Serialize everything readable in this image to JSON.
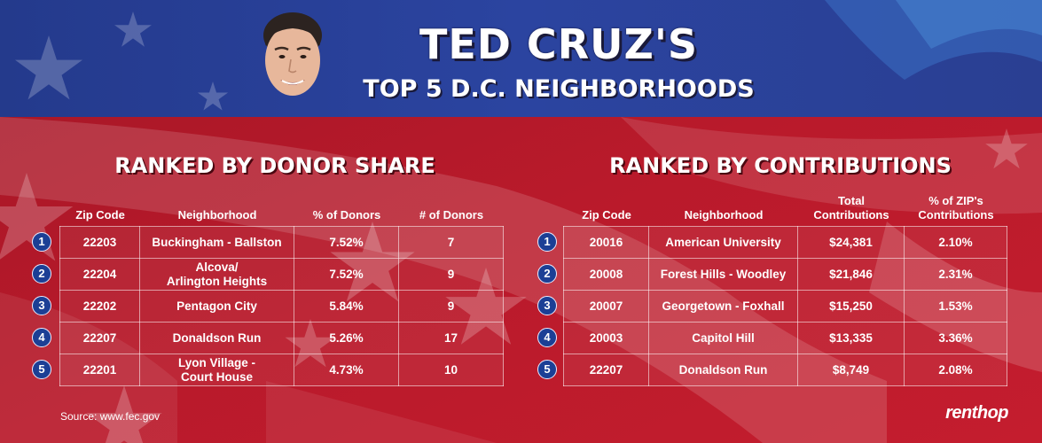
{
  "header": {
    "title": "TED CRUZ'S",
    "subtitle": "TOP 5 D.C. NEIGHBORHOODS"
  },
  "left_table": {
    "title": "RANKED BY DONOR SHARE",
    "columns": [
      "Zip Code",
      "Neighborhood",
      "% of Donors",
      "# of Donors"
    ],
    "rows": [
      {
        "rank": "1",
        "zip": "22203",
        "neighborhood": [
          "Buckingham - Ballston"
        ],
        "percent": "7.52%",
        "count": "7"
      },
      {
        "rank": "2",
        "zip": "22204",
        "neighborhood": [
          "Alcova/",
          "Arlington Heights"
        ],
        "percent": "7.52%",
        "count": "9"
      },
      {
        "rank": "3",
        "zip": "22202",
        "neighborhood": [
          "Pentagon City"
        ],
        "percent": "5.84%",
        "count": "9"
      },
      {
        "rank": "4",
        "zip": "22207",
        "neighborhood": [
          "Donaldson Run"
        ],
        "percent": "5.26%",
        "count": "17"
      },
      {
        "rank": "5",
        "zip": "22201",
        "neighborhood": [
          "Lyon Village -",
          "Court House"
        ],
        "percent": "4.73%",
        "count": "10"
      }
    ]
  },
  "right_table": {
    "title": "RANKED BY CONTRIBUTIONS",
    "columns": [
      [
        "Zip Code"
      ],
      [
        "Neighborhood"
      ],
      [
        "Total",
        "Contributions"
      ],
      [
        "% of ZIP's",
        "Contributions"
      ]
    ],
    "rows": [
      {
        "rank": "1",
        "zip": "20016",
        "neighborhood": "American University",
        "total": "$24,381",
        "share": "2.10%"
      },
      {
        "rank": "2",
        "zip": "20008",
        "neighborhood": "Forest Hills - Woodley",
        "total": "$21,846",
        "share": "2.31%"
      },
      {
        "rank": "3",
        "zip": "20007",
        "neighborhood": "Georgetown - Foxhall",
        "total": "$15,250",
        "share": "1.53%"
      },
      {
        "rank": "4",
        "zip": "20003",
        "neighborhood": "Capitol Hill",
        "total": "$13,335",
        "share": "3.36%"
      },
      {
        "rank": "5",
        "zip": "22207",
        "neighborhood": "Donaldson Run",
        "total": "$8,749",
        "share": "2.08%"
      }
    ]
  },
  "footer": {
    "source": "Source: www.fec.gov",
    "logo": "renthop"
  },
  "colors": {
    "blue_band": "#2a3d8f",
    "red_field": "#b8192a",
    "badge_blue": "#1c3f95"
  }
}
